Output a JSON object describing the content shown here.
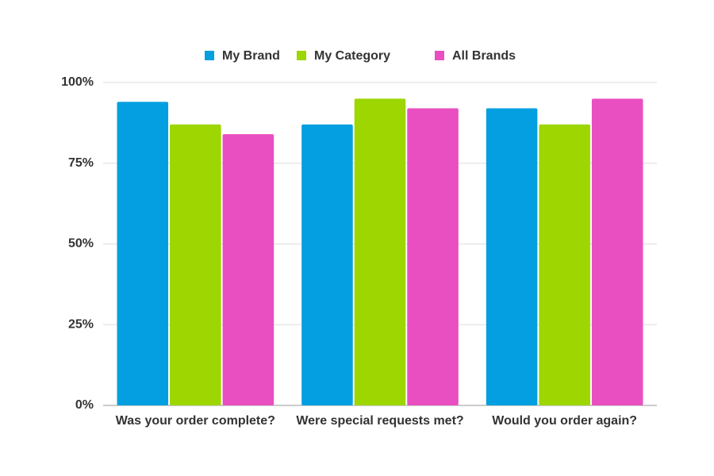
{
  "chart_data": {
    "type": "bar",
    "categories": [
      "Was your order complete?",
      "Were special requests met?",
      "Would you order again?"
    ],
    "series": [
      {
        "name": "My Brand",
        "color": "#049fe0",
        "values": [
          94,
          87,
          92
        ]
      },
      {
        "name": "My Category",
        "color": "#9dd600",
        "values": [
          87,
          95,
          87
        ]
      },
      {
        "name": "All Brands",
        "color": "#e94fc1",
        "values": [
          84,
          92,
          95
        ]
      }
    ],
    "ylim": [
      0,
      100
    ],
    "yticks": [
      {
        "value": 0,
        "label": "0%"
      },
      {
        "value": 25,
        "label": "25%"
      },
      {
        "value": 50,
        "label": "50%"
      },
      {
        "value": 75,
        "label": "75%"
      },
      {
        "value": 100,
        "label": "100%"
      }
    ],
    "grid": true,
    "legend": "top"
  }
}
